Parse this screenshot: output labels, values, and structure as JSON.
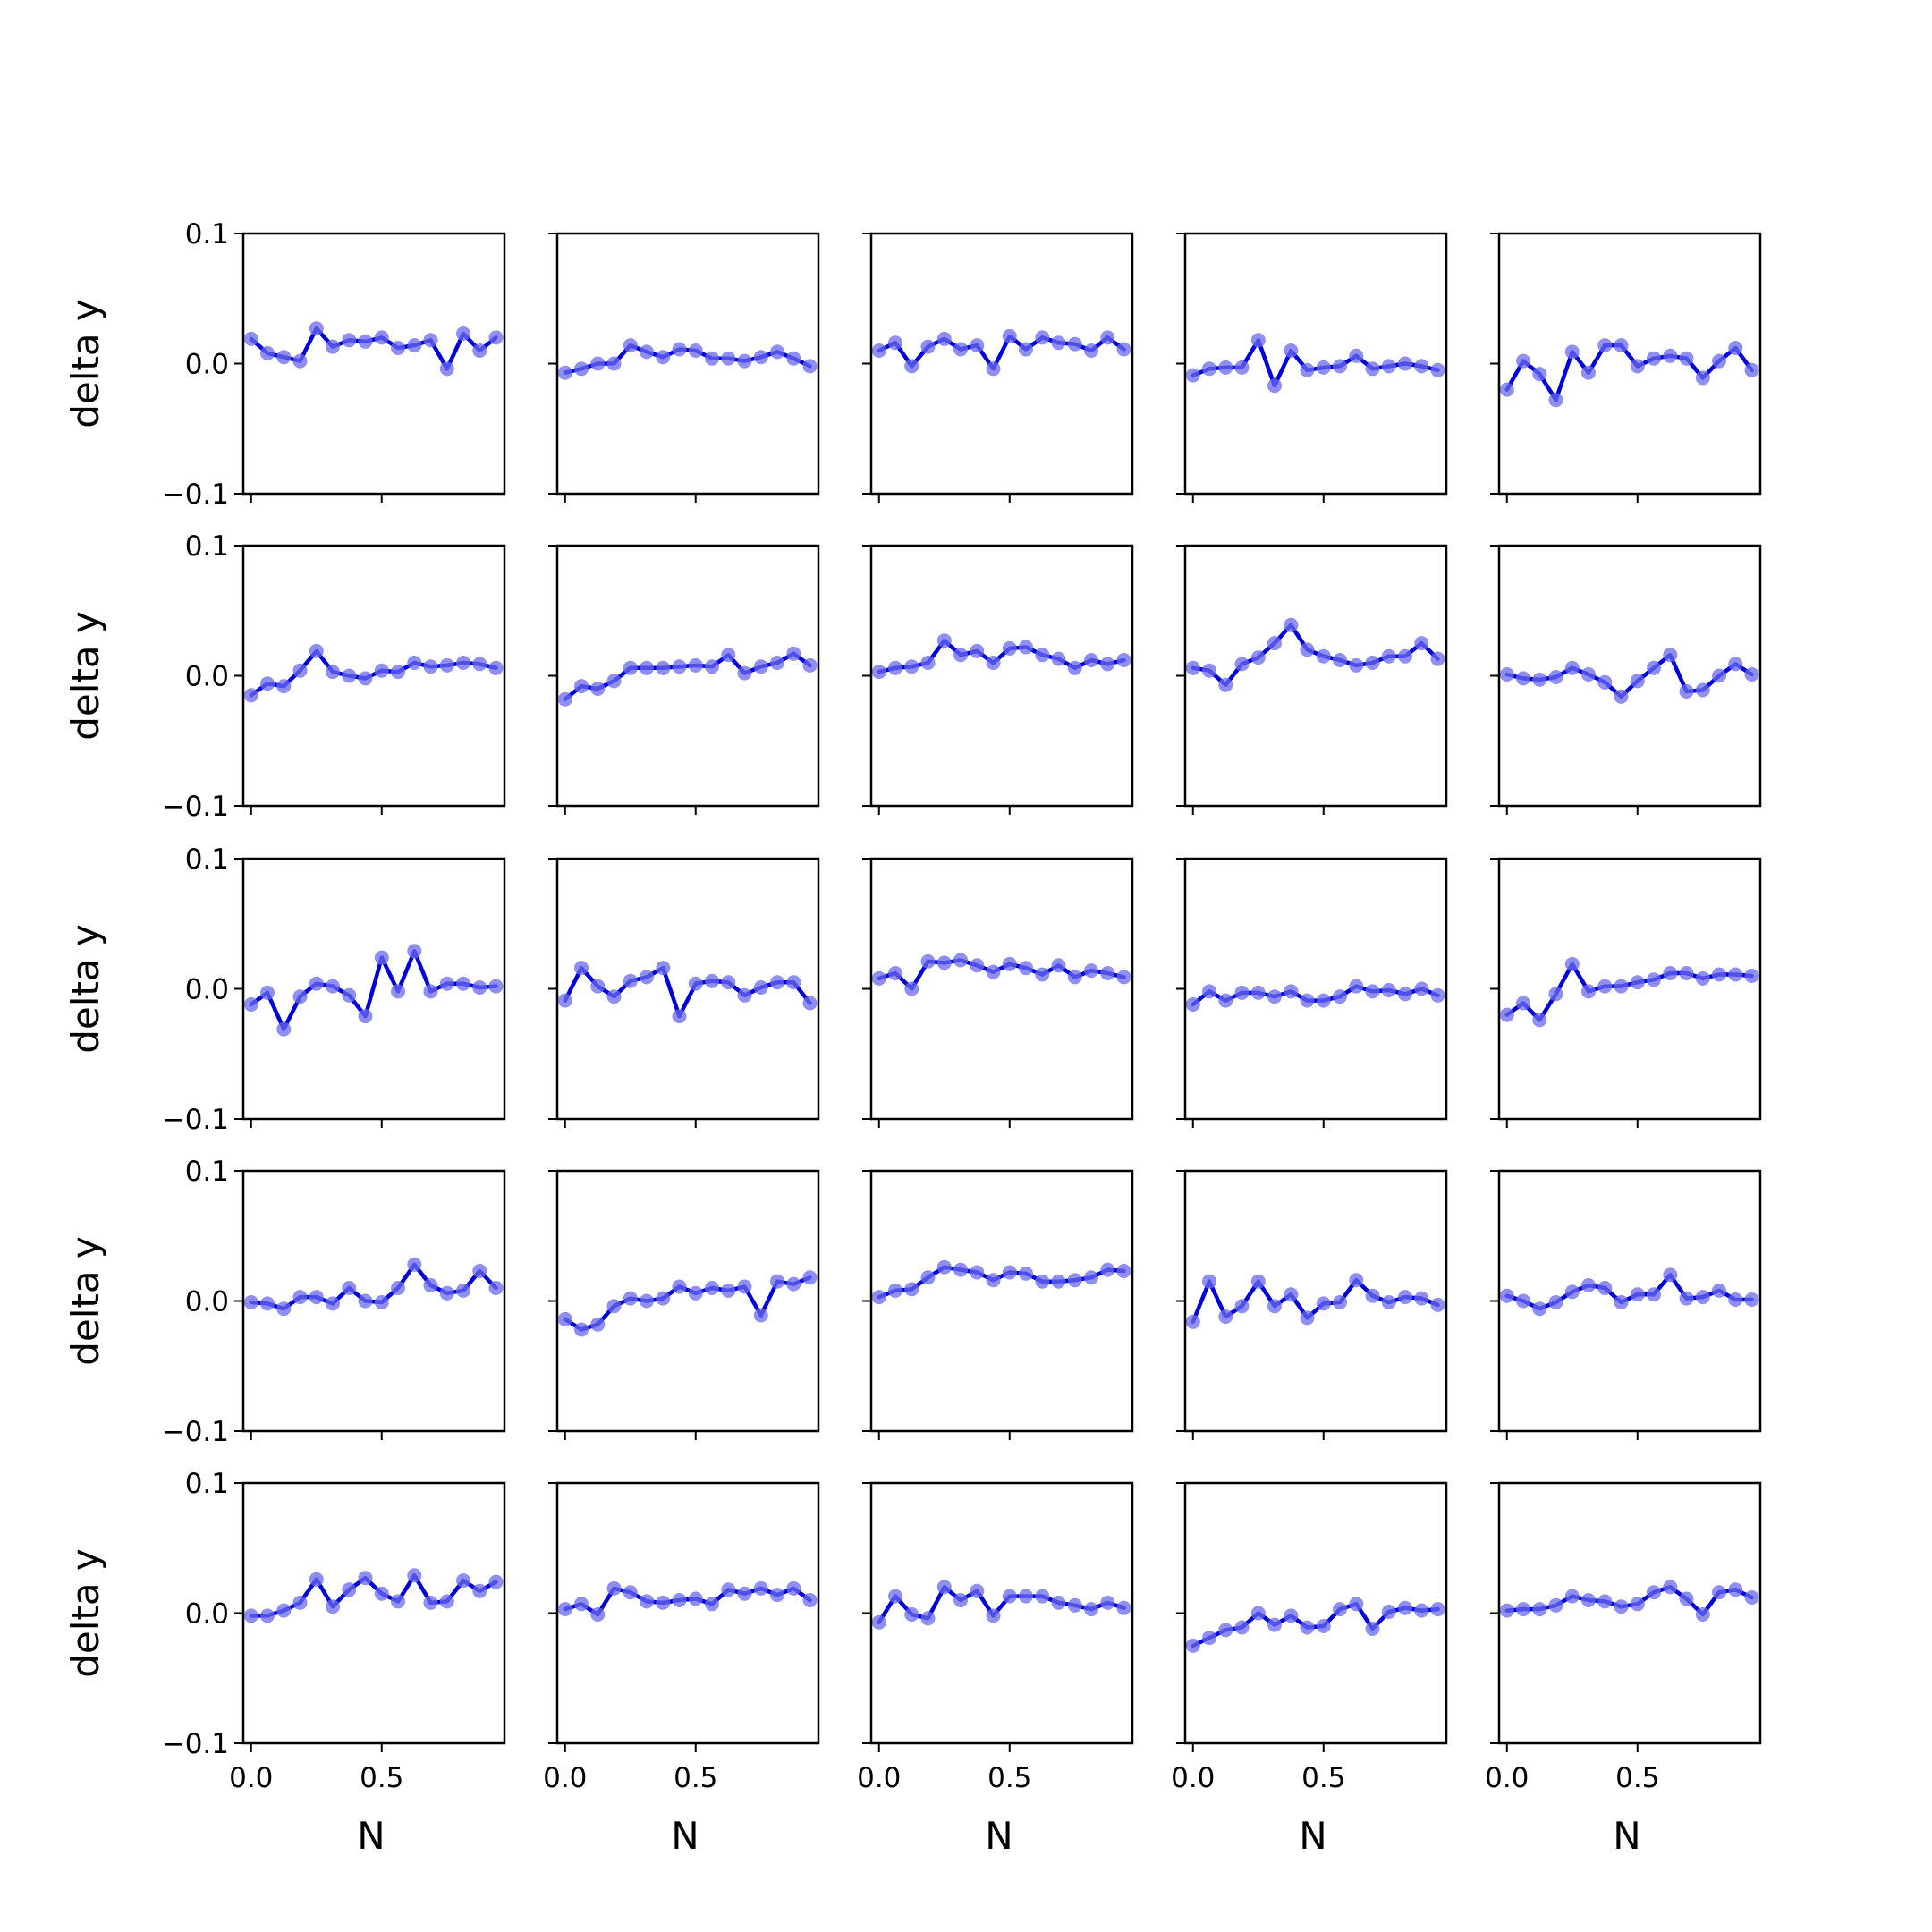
{
  "figure": {
    "line_color": "#0000dd",
    "marker_color": "#6a6aee",
    "axis_color": "#000000"
  },
  "chart_data": {
    "type": "line",
    "layout": "5x5 grid of small multiples, shared axes",
    "xlabel": "N",
    "ylabel": "delta y",
    "xlim": [
      -0.03,
      0.97
    ],
    "ylim": [
      -0.1,
      0.1
    ],
    "x_ticks": [
      0.0,
      0.5
    ],
    "x_tick_labels": [
      "0.0",
      "0.5"
    ],
    "y_ticks": [
      -0.1,
      0.0,
      0.1
    ],
    "y_tick_labels": [
      "−0.1",
      "0.0",
      "0.1"
    ],
    "grid": false,
    "legend": "none",
    "x": [
      0.0,
      0.0625,
      0.125,
      0.1875,
      0.25,
      0.3125,
      0.375,
      0.4375,
      0.5,
      0.5625,
      0.625,
      0.6875,
      0.75,
      0.8125,
      0.875,
      0.9375
    ],
    "panels": [
      {
        "values": [
          0.019,
          0.008,
          0.005,
          0.002,
          0.027,
          0.013,
          0.018,
          0.017,
          0.02,
          0.012,
          0.014,
          0.018,
          -0.004,
          0.023,
          0.01,
          0.02
        ]
      },
      {
        "values": [
          -0.007,
          -0.004,
          0.0,
          0.0,
          0.014,
          0.009,
          0.005,
          0.011,
          0.01,
          0.004,
          0.004,
          0.002,
          0.005,
          0.009,
          0.004,
          -0.002
        ]
      },
      {
        "values": [
          0.01,
          0.016,
          -0.002,
          0.013,
          0.019,
          0.011,
          0.014,
          -0.004,
          0.021,
          0.011,
          0.02,
          0.016,
          0.015,
          0.01,
          0.02,
          0.011
        ]
      },
      {
        "values": [
          -0.009,
          -0.004,
          -0.003,
          -0.003,
          0.018,
          -0.017,
          0.01,
          -0.005,
          -0.003,
          -0.002,
          0.006,
          -0.004,
          -0.002,
          0.0,
          -0.002,
          -0.005
        ]
      },
      {
        "values": [
          -0.02,
          0.002,
          -0.008,
          -0.028,
          0.009,
          -0.007,
          0.014,
          0.014,
          -0.002,
          0.004,
          0.006,
          0.004,
          -0.011,
          0.002,
          0.012,
          -0.005
        ]
      },
      {
        "values": [
          -0.015,
          -0.006,
          -0.008,
          0.004,
          0.019,
          0.003,
          0.0,
          -0.002,
          0.004,
          0.003,
          0.01,
          0.007,
          0.008,
          0.01,
          0.009,
          0.006
        ]
      },
      {
        "values": [
          -0.018,
          -0.008,
          -0.01,
          -0.004,
          0.006,
          0.006,
          0.006,
          0.007,
          0.008,
          0.007,
          0.016,
          0.002,
          0.007,
          0.01,
          0.017,
          0.008
        ]
      },
      {
        "values": [
          0.003,
          0.006,
          0.007,
          0.01,
          0.027,
          0.016,
          0.019,
          0.01,
          0.021,
          0.022,
          0.016,
          0.013,
          0.006,
          0.012,
          0.009,
          0.012
        ]
      },
      {
        "values": [
          0.006,
          0.004,
          -0.007,
          0.009,
          0.014,
          0.025,
          0.039,
          0.02,
          0.015,
          0.012,
          0.008,
          0.01,
          0.015,
          0.015,
          0.025,
          0.013
        ]
      },
      {
        "values": [
          0.001,
          -0.002,
          -0.003,
          -0.001,
          0.006,
          0.001,
          -0.005,
          -0.016,
          -0.004,
          0.006,
          0.016,
          -0.012,
          -0.011,
          0.0,
          0.009,
          0.001
        ]
      },
      {
        "values": [
          -0.012,
          -0.003,
          -0.031,
          -0.006,
          0.004,
          0.002,
          -0.005,
          -0.021,
          0.024,
          -0.002,
          0.029,
          -0.002,
          0.004,
          0.004,
          0.001,
          0.002
        ]
      },
      {
        "values": [
          -0.009,
          0.016,
          0.002,
          -0.006,
          0.006,
          0.009,
          0.016,
          -0.021,
          0.004,
          0.006,
          0.005,
          -0.005,
          0.001,
          0.005,
          0.005,
          -0.011
        ]
      },
      {
        "values": [
          0.008,
          0.012,
          0.0,
          0.021,
          0.02,
          0.022,
          0.018,
          0.013,
          0.019,
          0.016,
          0.011,
          0.018,
          0.009,
          0.014,
          0.012,
          0.009
        ]
      },
      {
        "values": [
          -0.012,
          -0.002,
          -0.009,
          -0.003,
          -0.003,
          -0.006,
          -0.002,
          -0.009,
          -0.009,
          -0.006,
          0.002,
          -0.002,
          -0.001,
          -0.004,
          0.0,
          -0.005
        ]
      },
      {
        "values": [
          -0.02,
          -0.011,
          -0.024,
          -0.004,
          0.019,
          -0.002,
          0.002,
          0.002,
          0.005,
          0.007,
          0.012,
          0.012,
          0.008,
          0.011,
          0.011,
          0.01
        ]
      },
      {
        "values": [
          -0.001,
          -0.002,
          -0.006,
          0.003,
          0.003,
          -0.002,
          0.01,
          0.0,
          -0.001,
          0.01,
          0.028,
          0.012,
          0.006,
          0.008,
          0.023,
          0.01
        ]
      },
      {
        "values": [
          -0.014,
          -0.022,
          -0.018,
          -0.004,
          0.002,
          0.0,
          0.002,
          0.011,
          0.006,
          0.01,
          0.008,
          0.011,
          -0.011,
          0.015,
          0.013,
          0.018
        ]
      },
      {
        "values": [
          0.003,
          0.008,
          0.009,
          0.018,
          0.026,
          0.024,
          0.022,
          0.016,
          0.022,
          0.021,
          0.015,
          0.015,
          0.016,
          0.018,
          0.024,
          0.023
        ]
      },
      {
        "values": [
          -0.016,
          0.015,
          -0.012,
          -0.004,
          0.015,
          -0.004,
          0.005,
          -0.013,
          -0.002,
          -0.001,
          0.016,
          0.004,
          -0.001,
          0.003,
          0.002,
          -0.003
        ]
      },
      {
        "values": [
          0.004,
          0.0,
          -0.006,
          -0.001,
          0.007,
          0.012,
          0.01,
          -0.001,
          0.005,
          0.005,
          0.02,
          0.002,
          0.003,
          0.008,
          0.001,
          0.001
        ]
      },
      {
        "values": [
          -0.002,
          -0.002,
          0.002,
          0.008,
          0.026,
          0.005,
          0.018,
          0.027,
          0.015,
          0.009,
          0.029,
          0.008,
          0.009,
          0.025,
          0.017,
          0.024
        ]
      },
      {
        "values": [
          0.003,
          0.007,
          -0.001,
          0.019,
          0.016,
          0.009,
          0.008,
          0.01,
          0.011,
          0.007,
          0.018,
          0.015,
          0.019,
          0.014,
          0.019,
          0.01
        ]
      },
      {
        "values": [
          -0.007,
          0.013,
          -0.001,
          -0.004,
          0.02,
          0.01,
          0.017,
          -0.002,
          0.013,
          0.013,
          0.013,
          0.008,
          0.006,
          0.003,
          0.008,
          0.004
        ]
      },
      {
        "values": [
          -0.025,
          -0.019,
          -0.013,
          -0.011,
          0.0,
          -0.009,
          -0.002,
          -0.011,
          -0.01,
          0.003,
          0.007,
          -0.012,
          0.001,
          0.004,
          0.002,
          0.003
        ]
      },
      {
        "values": [
          0.002,
          0.003,
          0.003,
          0.006,
          0.013,
          0.01,
          0.009,
          0.005,
          0.007,
          0.016,
          0.02,
          0.011,
          -0.001,
          0.016,
          0.018,
          0.012
        ]
      }
    ]
  }
}
